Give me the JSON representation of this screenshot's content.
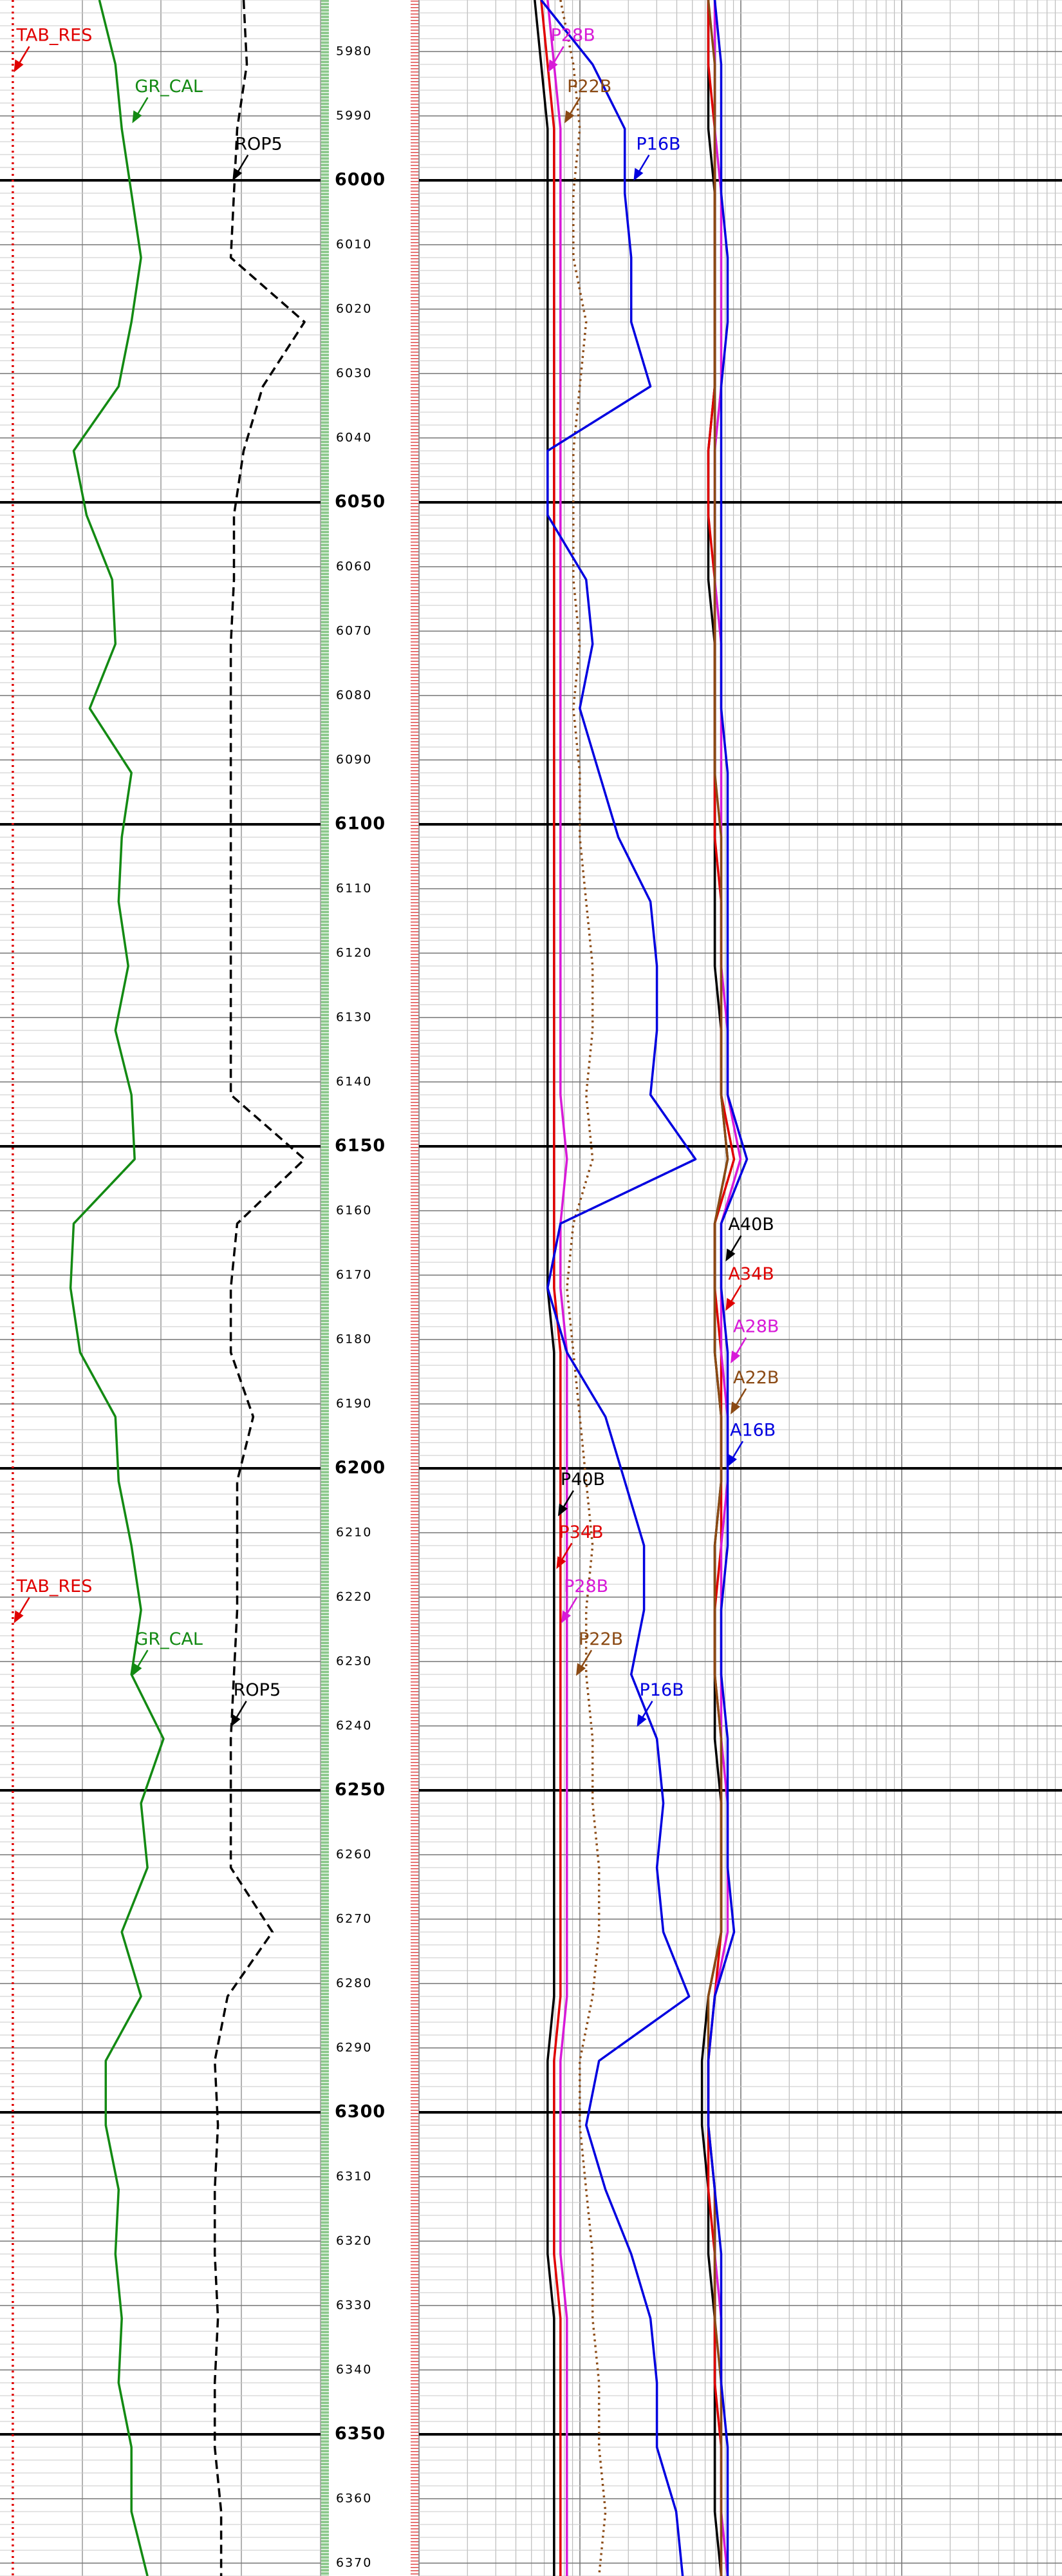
{
  "chart_data": {
    "type": "well-log",
    "x": [
      5972,
      5982,
      5992,
      6002,
      6012,
      6022,
      6032,
      6042,
      6052,
      6062,
      6072,
      6082,
      6092,
      6102,
      6112,
      6122,
      6132,
      6142,
      6152,
      6162,
      6172,
      6182,
      6192,
      6202,
      6212,
      6222,
      6232,
      6242,
      6252,
      6262,
      6272,
      6282,
      6292,
      6302,
      6312,
      6322,
      6332,
      6342,
      6352,
      6362,
      6372
    ],
    "xlim": [
      5972,
      6372
    ],
    "xticks": [
      5980,
      5990,
      6000,
      6010,
      6020,
      6030,
      6040,
      6050,
      6060,
      6070,
      6080,
      6090,
      6100,
      6110,
      6120,
      6130,
      6140,
      6150,
      6160,
      6170,
      6180,
      6190,
      6200,
      6210,
      6220,
      6230,
      6240,
      6250,
      6260,
      6270,
      6280,
      6290,
      6300,
      6310,
      6320,
      6330,
      6340,
      6350,
      6360,
      6370
    ],
    "grid": true,
    "tracks": [
      {
        "ylim": [
          0,
          100
        ],
        "series": [
          {
            "name": "TAB_RES",
            "color": "#e00000",
            "dash": "dotted",
            "values": [
              4,
              4,
              4,
              4,
              4,
              4,
              4,
              4,
              4,
              4,
              4,
              4,
              4,
              4,
              4,
              4,
              4,
              4,
              4,
              4,
              4,
              4,
              4,
              4,
              4,
              4,
              4,
              4,
              4,
              4,
              4,
              4,
              4,
              4,
              4,
              4,
              4,
              4,
              4,
              4,
              4
            ]
          },
          {
            "name": "GR_CAL",
            "color": "#138a13",
            "values": [
              31,
              36,
              38,
              41,
              44,
              41,
              37,
              23,
              27,
              35,
              36,
              28,
              41,
              38,
              37,
              40,
              36,
              41,
              42,
              23,
              22,
              25,
              36,
              37,
              41,
              44,
              41,
              51,
              44,
              46,
              38,
              44,
              33,
              33,
              37,
              36,
              38,
              37,
              41,
              41,
              46
            ]
          },
          {
            "name": "ROP5",
            "color": "#000000",
            "dash": "dashed",
            "values": [
              76,
              77,
              74,
              73,
              72,
              95,
              82,
              76,
              73,
              73,
              72,
              72,
              72,
              72,
              72,
              72,
              72,
              72,
              95,
              74,
              72,
              72,
              79,
              74,
              74,
              74,
              73,
              72,
              72,
              72,
              85,
              71,
              67,
              68,
              67,
              67,
              68,
              67,
              67,
              69,
              69
            ]
          }
        ]
      },
      {
        "ylim": [
          0,
          100
        ],
        "series": [
          {
            "name": "P40B",
            "color": "#000000",
            "values": [
              18,
              19,
              20,
              20,
              20,
              20,
              20,
              20,
              20,
              20,
              20,
              20,
              20,
              20,
              20,
              20,
              20,
              20,
              20,
              20,
              20,
              21,
              21,
              21,
              21,
              21,
              21,
              21,
              21,
              21,
              21,
              21,
              20,
              20,
              20,
              20,
              21,
              21,
              21,
              21,
              21
            ]
          },
          {
            "name": "P34B",
            "color": "#e00000",
            "values": [
              19,
              20,
              21,
              21,
              21,
              21,
              21,
              21,
              21,
              21,
              21,
              21,
              21,
              21,
              21,
              21,
              21,
              21,
              21,
              21,
              21,
              22,
              22,
              22,
              22,
              22,
              22,
              22,
              22,
              22,
              22,
              22,
              21,
              21,
              21,
              21,
              22,
              22,
              22,
              22,
              22
            ]
          },
          {
            "name": "P28B",
            "color": "#d81ad8",
            "values": [
              20,
              21,
              22,
              22,
              22,
              22,
              22,
              22,
              22,
              22,
              22,
              22,
              22,
              22,
              22,
              22,
              22,
              22,
              23,
              22,
              22,
              23,
              23,
              23,
              23,
              23,
              23,
              23,
              23,
              23,
              23,
              23,
              22,
              22,
              22,
              22,
              23,
              23,
              23,
              23,
              23
            ]
          },
          {
            "name": "P22B",
            "color": "#8b4a14",
            "dash": "dotted",
            "values": [
              22,
              24,
              25,
              24,
              24,
              26,
              25,
              24,
              24,
              24,
              25,
              24,
              25,
              25,
              26,
              27,
              27,
              26,
              27,
              24,
              23,
              24,
              25,
              26,
              27,
              26,
              26,
              27,
              27,
              28,
              28,
              27,
              25,
              25,
              26,
              27,
              27,
              28,
              28,
              29,
              28
            ]
          },
          {
            "name": "P16B",
            "color": "#0000e0",
            "values": [
              19,
              27,
              32,
              32,
              33,
              33,
              36,
              20,
              20,
              26,
              27,
              25,
              28,
              31,
              36,
              37,
              37,
              36,
              43,
              22,
              20,
              23,
              29,
              32,
              35,
              35,
              33,
              37,
              38,
              37,
              38,
              42,
              28,
              26,
              29,
              33,
              36,
              37,
              37,
              40,
              41
            ]
          },
          {
            "name": "A40B",
            "color": "#000000",
            "values": [
              45,
              45,
              45,
              46,
              46,
              46,
              46,
              45,
              45,
              45,
              46,
              46,
              46,
              46,
              46,
              46,
              47,
              47,
              48,
              46,
              46,
              46,
              47,
              47,
              46,
              46,
              46,
              46,
              47,
              47,
              47,
              45,
              44,
              44,
              45,
              45,
              46,
              46,
              46,
              46,
              47
            ]
          },
          {
            "name": "A34B",
            "color": "#e00000",
            "values": [
              45,
              45,
              46,
              46,
              46,
              46,
              46,
              45,
              45,
              46,
              46,
              46,
              46,
              46,
              47,
              47,
              47,
              47,
              49,
              46,
              46,
              47,
              47,
              47,
              47,
              46,
              46,
              47,
              47,
              47,
              47,
              46,
              45,
              45,
              45,
              46,
              46,
              46,
              47,
              47,
              47
            ]
          },
          {
            "name": "A28B",
            "color": "#d81ad8",
            "values": [
              46,
              46,
              46,
              47,
              47,
              47,
              47,
              46,
              46,
              46,
              47,
              47,
              47,
              47,
              47,
              47,
              48,
              48,
              50,
              47,
              47,
              47,
              48,
              48,
              47,
              47,
              47,
              47,
              48,
              48,
              48,
              46,
              45,
              45,
              46,
              46,
              47,
              47,
              47,
              47,
              48
            ]
          },
          {
            "name": "A22B",
            "color": "#8b4a14",
            "values": [
              45,
              46,
              46,
              46,
              46,
              46,
              46,
              46,
              46,
              46,
              46,
              46,
              46,
              47,
              47,
              47,
              47,
              47,
              48,
              46,
              46,
              46,
              47,
              47,
              46,
              46,
              46,
              47,
              47,
              47,
              47,
              45,
              45,
              45,
              46,
              46,
              46,
              47,
              47,
              47,
              47
            ]
          },
          {
            "name": "A16B",
            "color": "#0000e0",
            "values": [
              46,
              47,
              47,
              47,
              48,
              48,
              47,
              47,
              47,
              47,
              47,
              47,
              48,
              48,
              48,
              48,
              48,
              48,
              51,
              47,
              47,
              48,
              48,
              48,
              48,
              47,
              47,
              48,
              48,
              48,
              49,
              46,
              45,
              45,
              46,
              47,
              47,
              47,
              48,
              48,
              48
            ]
          }
        ]
      }
    ]
  }
}
